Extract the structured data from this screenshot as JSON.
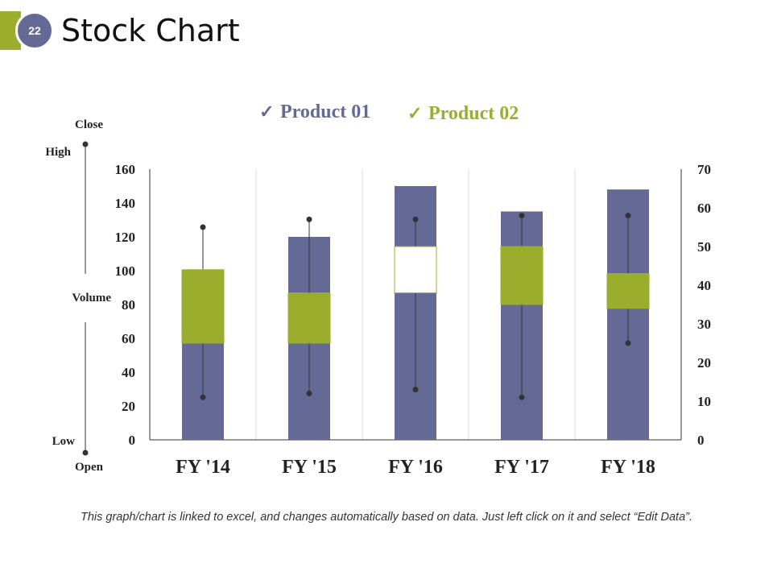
{
  "slide": {
    "number": "22",
    "title": "Stock Chart"
  },
  "footnote": "This graph/chart is linked to excel, and changes automatically based on data. Just left click on it and select “Edit Data”.",
  "colors": {
    "product01": "#646a95",
    "product02": "#9aad2d",
    "accent": "#9aad2d",
    "dot": "#333333"
  },
  "side_legend": {
    "close": "Close",
    "high": "High",
    "volume": "Volume",
    "low": "Low",
    "open": "Open"
  },
  "chart_data": {
    "type": "stock",
    "legend": [
      {
        "name": "Product 01",
        "check": "✓"
      },
      {
        "name": "Product 02",
        "check": "✓"
      }
    ],
    "categories": [
      "FY '14",
      "FY '15",
      "FY '16",
      "FY '17",
      "FY '18"
    ],
    "volume": {
      "axis": "left",
      "ylim": [
        0,
        160
      ],
      "ticks": [
        0,
        20,
        40,
        60,
        80,
        100,
        120,
        140,
        160
      ],
      "values": [
        57,
        120,
        150,
        135,
        148
      ]
    },
    "price": {
      "axis": "right",
      "ylim": [
        0,
        70
      ],
      "ticks": [
        0,
        10,
        20,
        30,
        40,
        50,
        60,
        70
      ],
      "open": [
        25,
        25,
        50,
        35,
        34
      ],
      "high": [
        55,
        57,
        57,
        58,
        58
      ],
      "low": [
        11,
        12,
        13,
        11,
        25
      ],
      "close": [
        44,
        38,
        38,
        50,
        43
      ]
    },
    "grid": "vertical separators"
  }
}
